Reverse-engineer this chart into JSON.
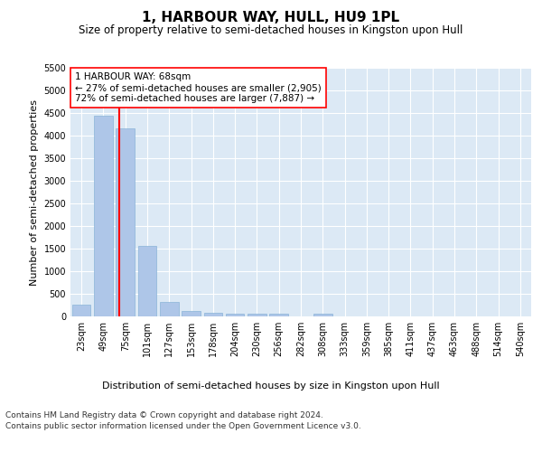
{
  "title": "1, HARBOUR WAY, HULL, HU9 1PL",
  "subtitle": "Size of property relative to semi-detached houses in Kingston upon Hull",
  "xlabel": "Distribution of semi-detached houses by size in Kingston upon Hull",
  "ylabel": "Number of semi-detached properties",
  "categories": [
    "23sqm",
    "49sqm",
    "75sqm",
    "101sqm",
    "127sqm",
    "153sqm",
    "178sqm",
    "204sqm",
    "230sqm",
    "256sqm",
    "282sqm",
    "308sqm",
    "333sqm",
    "359sqm",
    "385sqm",
    "411sqm",
    "437sqm",
    "463sqm",
    "488sqm",
    "514sqm",
    "540sqm"
  ],
  "values": [
    270,
    4440,
    4160,
    1560,
    320,
    120,
    80,
    65,
    60,
    55,
    0,
    60,
    0,
    0,
    0,
    0,
    0,
    0,
    0,
    0,
    0
  ],
  "bar_color": "#aec6e8",
  "bar_edge_color": "#8ab4d8",
  "annotation_text": "1 HARBOUR WAY: 68sqm\n← 27% of semi-detached houses are smaller (2,905)\n72% of semi-detached houses are larger (7,887) →",
  "ylim": [
    0,
    5500
  ],
  "yticks": [
    0,
    500,
    1000,
    1500,
    2000,
    2500,
    3000,
    3500,
    4000,
    4500,
    5000,
    5500
  ],
  "footer_line1": "Contains HM Land Registry data © Crown copyright and database right 2024.",
  "footer_line2": "Contains public sector information licensed under the Open Government Licence v3.0.",
  "background_color": "#dce9f5",
  "grid_color": "#ffffff",
  "title_fontsize": 11,
  "subtitle_fontsize": 8.5,
  "axis_label_fontsize": 8,
  "tick_fontsize": 7,
  "annotation_fontsize": 7.5,
  "footer_fontsize": 6.5
}
